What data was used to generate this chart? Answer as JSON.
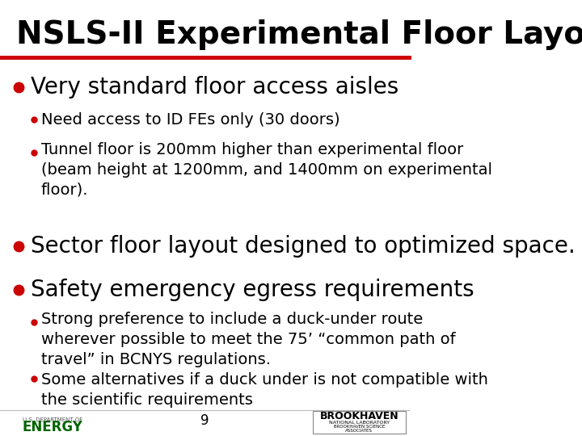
{
  "title": "NSLS-II Experimental Floor Layout",
  "title_fontsize": 28,
  "title_color": "#000000",
  "red_line_color": "#CC0000",
  "background_color": "#FFFFFF",
  "bullet_color": "#CC0000",
  "bullet1_text": "Very standard floor access aisles",
  "bullet1_sub": [
    "Need access to ID FEs only (30 doors)",
    "Tunnel floor is 200mm higher than experimental floor\n(beam height at 1200mm, and 1400mm on experimental\nfloor)."
  ],
  "bullet2_text": "Sector floor layout designed to optimized space.",
  "bullet3_text": "Safety emergency egress requirements",
  "bullet3_sub": [
    "Strong preference to include a duck-under route\nwherever possible to meet the 75’ “common path of\ntravel” in BCNYS regulations.",
    "Some alternatives if a duck under is not compatible with\nthe scientific requirements"
  ],
  "page_number": "9",
  "main_bullet_fontsize": 20,
  "sub_bullet_fontsize": 14,
  "page_num_fontsize": 12
}
